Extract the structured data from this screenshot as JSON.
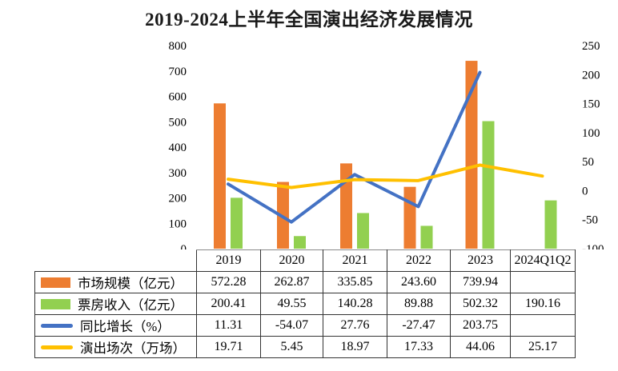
{
  "title": "2019-2024上半年全国演出经济发展情况",
  "chart_data": {
    "type": "combo-bar-line",
    "title": "2019-2024上半年全国演出经济发展情况",
    "categories": [
      "2019",
      "2020",
      "2021",
      "2022",
      "2023",
      "2024Q1Q2"
    ],
    "series": [
      {
        "name": "市场规模（亿元）",
        "type": "bar",
        "axis": "left",
        "color": "#ED7D31",
        "z": 1,
        "values": [
          572.28,
          262.87,
          335.85,
          243.6,
          739.94,
          null
        ]
      },
      {
        "name": "票房收入（亿元）",
        "type": "bar",
        "axis": "left",
        "color": "#92D050",
        "z": 1,
        "values": [
          200.41,
          49.55,
          140.28,
          89.88,
          502.32,
          190.16
        ]
      },
      {
        "name": "同比增长（%）",
        "type": "line",
        "axis": "right",
        "color": "#4472C4",
        "z": 2,
        "values": [
          11.31,
          -54.07,
          27.76,
          -27.47,
          203.75,
          null
        ]
      },
      {
        "name": "演出场次（万场）",
        "type": "line",
        "axis": "right",
        "color": "#FFC000",
        "z": 3,
        "values": [
          19.71,
          5.45,
          18.97,
          17.33,
          44.06,
          25.17
        ]
      }
    ],
    "left_axis": {
      "min": 0,
      "max": 800,
      "ticks": [
        0,
        100,
        200,
        300,
        400,
        500,
        600,
        700,
        800
      ]
    },
    "right_axis": {
      "min": -100,
      "max": 250,
      "ticks": [
        -100,
        -50,
        0,
        50,
        100,
        150,
        200,
        250
      ]
    },
    "grid": false,
    "legend_position": "table-left-column"
  },
  "table": {
    "corner_label": "",
    "headers": [
      "2019",
      "2020",
      "2021",
      "2022",
      "2023",
      "2024Q1Q2"
    ],
    "rows": [
      {
        "label": "市场规模（亿元）",
        "swatch": "bar",
        "color": "#ED7D31",
        "values": [
          "572.28",
          "262.87",
          "335.85",
          "243.60",
          "739.94",
          ""
        ]
      },
      {
        "label": "票房收入（亿元）",
        "swatch": "bar",
        "color": "#92D050",
        "values": [
          "200.41",
          "49.55",
          "140.28",
          "89.88",
          "502.32",
          "190.16"
        ]
      },
      {
        "label": "同比增长（%）",
        "swatch": "line",
        "color": "#4472C4",
        "values": [
          "11.31",
          "-54.07",
          "27.76",
          "-27.47",
          "203.75",
          ""
        ]
      },
      {
        "label": "演出场次（万场）",
        "swatch": "line",
        "color": "#FFC000",
        "values": [
          "19.71",
          "5.45",
          "18.97",
          "17.33",
          "44.06",
          "25.17"
        ]
      }
    ]
  }
}
